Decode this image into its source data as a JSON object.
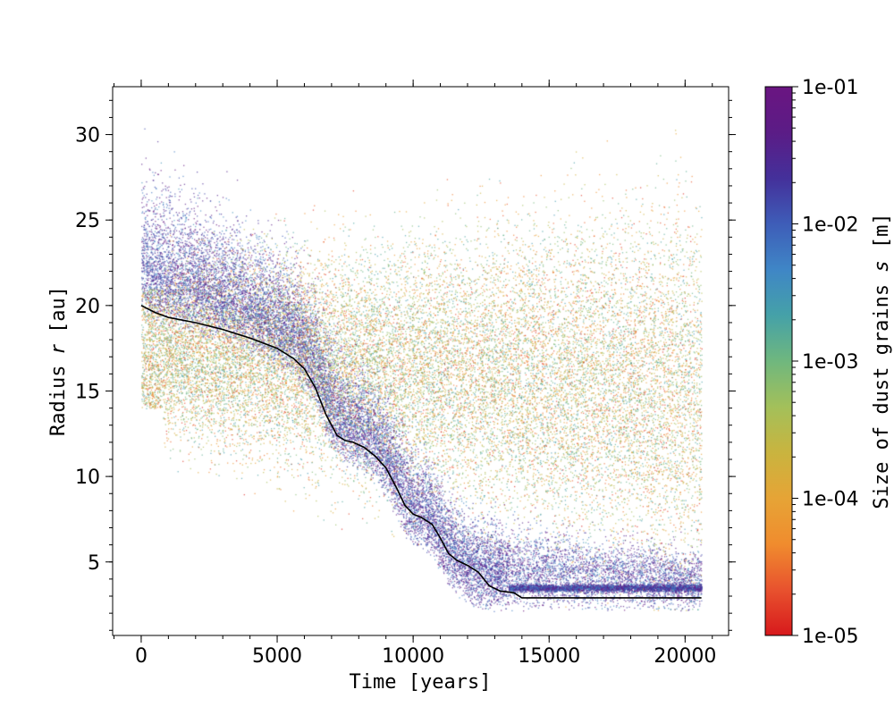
{
  "chart_data": {
    "type": "scatter",
    "xlabel": "Time [years]",
    "ylabel_prefix": "Radius ",
    "ylabel_var": "r",
    "ylabel_unit": " [au]",
    "xlim": [
      -1050,
      21600
    ],
    "ylim": [
      0.7,
      32.8
    ],
    "xticks": [
      0,
      5000,
      10000,
      15000,
      20000
    ],
    "xtick_labels": [
      "0",
      "5000",
      "10000",
      "15000",
      "20000"
    ],
    "yticks": [
      5,
      10,
      15,
      20,
      25,
      30
    ],
    "ytick_labels": [
      "5",
      "10",
      "15",
      "20",
      "25",
      "30"
    ],
    "grid": false,
    "colorbar": {
      "label_prefix": "Size of dust grains ",
      "label_var": "s",
      "label_unit": " [m]",
      "scale": "log",
      "range": [
        1e-05,
        0.1
      ],
      "ticks": [
        1e-05,
        0.0001,
        0.001,
        0.01,
        0.1
      ],
      "tick_labels": [
        "1e-05",
        "1e-04",
        "1e-03",
        "1e-02",
        "1e-01"
      ],
      "colors": [
        "#d7191c",
        "#e8522e",
        "#f08c2e",
        "#e6a436",
        "#c9b43f",
        "#a3c05a",
        "#6fb77e",
        "#45a1a8",
        "#3f86c6",
        "#3e5db8",
        "#44309a",
        "#5b1c86",
        "#6a1581"
      ]
    },
    "mean_track": {
      "name": "",
      "color": "#000000",
      "x": [
        0,
        500,
        1000,
        2000,
        3000,
        4000,
        5000,
        5600,
        6000,
        6400,
        6800,
        7200,
        7500,
        7800,
        8200,
        8600,
        9000,
        9400,
        9700,
        10000,
        10300,
        10700,
        11000,
        11300,
        11600,
        12000,
        12400,
        12800,
        13200,
        13700,
        14000,
        14300,
        15000,
        16000,
        17000,
        18000,
        19000,
        20000,
        20600
      ],
      "y": [
        20.0,
        19.6,
        19.3,
        19.0,
        18.6,
        18.1,
        17.5,
        16.9,
        16.3,
        15.2,
        13.6,
        12.4,
        12.1,
        12.0,
        11.7,
        11.2,
        10.5,
        9.3,
        8.3,
        7.8,
        7.6,
        7.2,
        6.4,
        5.5,
        5.1,
        4.8,
        4.4,
        3.6,
        3.3,
        3.2,
        2.9,
        2.9,
        2.9,
        2.9,
        2.9,
        2.9,
        2.9,
        2.9,
        2.9
      ]
    }
  }
}
